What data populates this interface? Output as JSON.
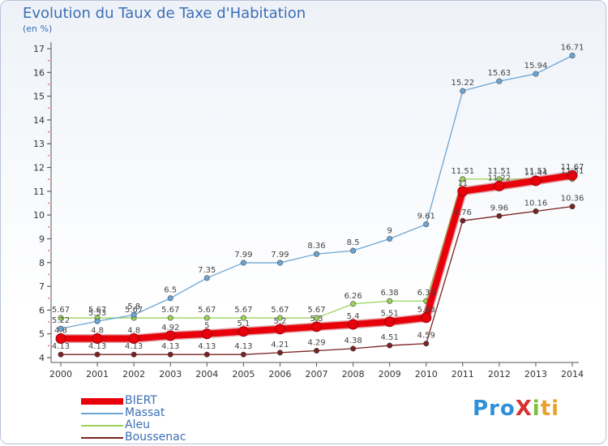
{
  "header": {
    "title": "Evolution du Taux de Taxe d'Habitation",
    "subtitle": "(en %)"
  },
  "logo": {
    "text": "ProXiti",
    "parts": [
      "Pro",
      "X",
      "i",
      "ti"
    ]
  },
  "chart_data": {
    "type": "line",
    "x": [
      2000,
      2001,
      2002,
      2003,
      2004,
      2005,
      2006,
      2007,
      2008,
      2009,
      2010,
      2011,
      2012,
      2013,
      2014
    ],
    "ylim": [
      4,
      17
    ],
    "yticks": [
      4,
      5,
      6,
      7,
      8,
      9,
      10,
      11,
      12,
      13,
      14,
      15,
      16,
      17
    ],
    "grid": false,
    "legend_position": "bottom-left",
    "series": [
      {
        "name": "BIERT",
        "color": "#e8000b",
        "values": [
          4.8,
          4.8,
          4.8,
          4.92,
          5.0,
          5.1,
          5.2,
          5.3,
          5.4,
          5.51,
          5.68,
          11.0,
          11.22,
          11.44,
          11.67
        ],
        "labels": [
          "4.8",
          "4.8",
          "4.8",
          "4.92",
          "5",
          "5.1",
          "5.2",
          "5.3",
          "5.4",
          "5.51",
          "5.68",
          "11",
          "11.22",
          "11.44",
          "11.67"
        ]
      },
      {
        "name": "Massat",
        "color": "#6ca6d6",
        "values": [
          5.22,
          5.53,
          5.8,
          6.5,
          7.35,
          7.99,
          7.99,
          8.36,
          8.5,
          9.0,
          9.61,
          15.22,
          15.63,
          15.94,
          16.71
        ],
        "labels": [
          "5.22",
          "5.53",
          "5.8",
          "6.5",
          "7.35",
          "7.99",
          "7.99",
          "8.36",
          "8.5",
          "9",
          "9.61",
          "15.22",
          "15.63",
          "15.94",
          "16.71"
        ]
      },
      {
        "name": "Aleu",
        "color": "#9ad35a",
        "values": [
          5.67,
          5.67,
          5.67,
          5.67,
          5.67,
          5.67,
          5.67,
          5.67,
          6.26,
          6.38,
          6.38,
          11.51,
          11.51,
          11.51,
          11.51
        ],
        "labels": [
          "5.67",
          "5.67",
          "5.67",
          "5.67",
          "5.67",
          "5.67",
          "5.67",
          "5.67",
          "6.26",
          "6.38",
          "6.38",
          "11.51",
          "11.51",
          "11.51",
          "11.51"
        ]
      },
      {
        "name": "Boussenac",
        "color": "#7a2222",
        "values": [
          4.13,
          4.13,
          4.13,
          4.13,
          4.13,
          4.13,
          4.21,
          4.29,
          4.38,
          4.51,
          4.59,
          9.76,
          9.96,
          10.16,
          10.36
        ],
        "labels": [
          "4.13",
          "4.13",
          "4.13",
          "4.13",
          "4.13",
          "4.13",
          "4.21",
          "4.29",
          "4.38",
          "4.51",
          "4.59",
          "9.76",
          "9.96",
          "10.16",
          "10.36"
        ]
      }
    ]
  }
}
